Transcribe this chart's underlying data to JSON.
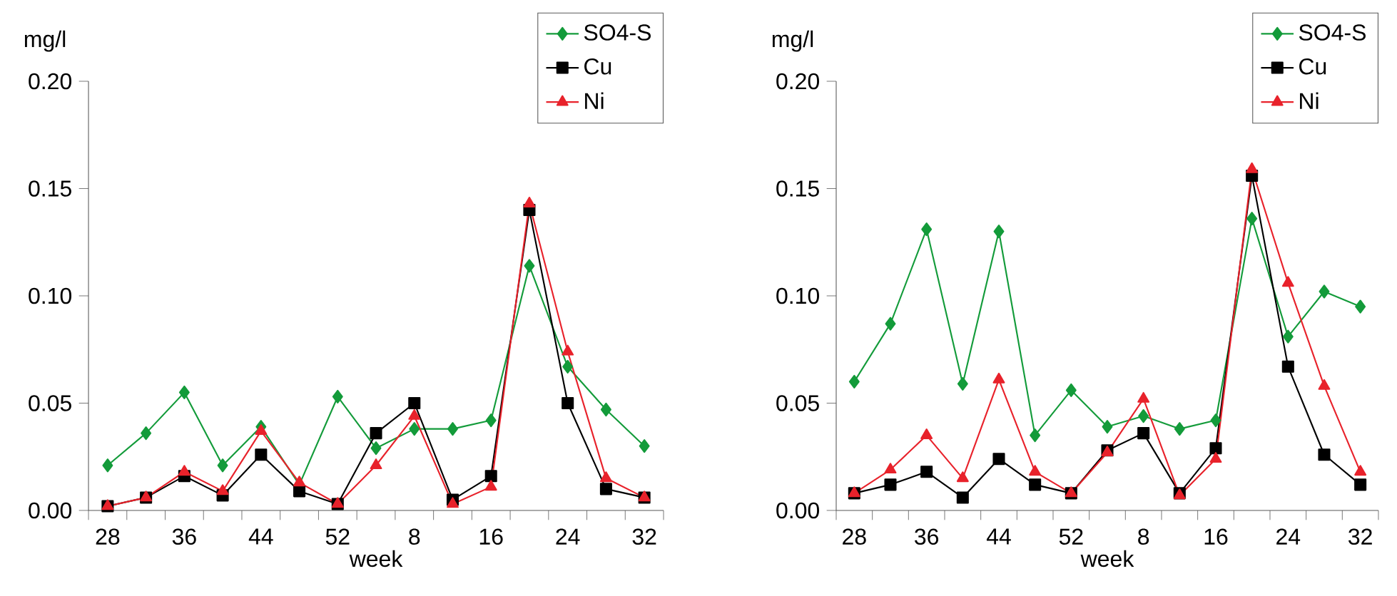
{
  "chart_data": [
    {
      "type": "line",
      "ylabel": "mg/l",
      "xlabel": "week",
      "legend": "top right",
      "grid": false,
      "categories": [
        "28",
        null,
        "36",
        null,
        "44",
        null,
        "52",
        null,
        "8",
        null,
        "16",
        null,
        "24",
        null,
        "32"
      ],
      "ylim": [
        0,
        0.2
      ],
      "yticks": [
        {
          "value": 0,
          "label": "0.00"
        },
        {
          "value": 0.05,
          "label": "0.05"
        },
        {
          "value": 0.1,
          "label": "0.10"
        },
        {
          "value": 0.15,
          "label": "0.15"
        },
        {
          "value": 0.2,
          "label": "0.20"
        }
      ],
      "series": [
        {
          "name": "SO4-S",
          "color": "#139b3a",
          "marker": "diamond",
          "values": [
            0.021,
            0.036,
            0.055,
            0.021,
            0.039,
            0.012,
            0.053,
            0.029,
            0.038,
            0.038,
            0.042,
            0.114,
            0.067,
            0.047,
            0.03
          ]
        },
        {
          "name": "Cu",
          "color": "#000000",
          "marker": "square",
          "values": [
            0.002,
            0.006,
            0.016,
            0.007,
            0.026,
            0.009,
            0.003,
            0.036,
            0.05,
            0.005,
            0.016,
            0.14,
            0.05,
            0.01,
            0.006
          ]
        },
        {
          "name": "Ni",
          "color": "#e8222b",
          "marker": "triangle",
          "values": [
            0.002,
            0.006,
            0.018,
            0.009,
            0.037,
            0.013,
            0.003,
            0.021,
            0.044,
            0.003,
            0.011,
            0.143,
            0.074,
            0.015,
            0.006
          ]
        }
      ]
    },
    {
      "type": "line",
      "ylabel": "mg/l",
      "xlabel": "week",
      "legend": "top right",
      "grid": false,
      "categories": [
        "28",
        null,
        "36",
        null,
        "44",
        null,
        "52",
        null,
        "8",
        null,
        "16",
        null,
        "24",
        null,
        "32"
      ],
      "ylim": [
        0,
        0.2
      ],
      "yticks": [
        {
          "value": 0,
          "label": "0.00"
        },
        {
          "value": 0.05,
          "label": "0.05"
        },
        {
          "value": 0.1,
          "label": "0.10"
        },
        {
          "value": 0.15,
          "label": "0.15"
        },
        {
          "value": 0.2,
          "label": "0.20"
        }
      ],
      "series": [
        {
          "name": "SO4-S",
          "color": "#139b3a",
          "marker": "diamond",
          "values": [
            0.06,
            0.087,
            0.131,
            0.059,
            0.13,
            0.035,
            0.056,
            0.039,
            0.044,
            0.038,
            0.042,
            0.136,
            0.081,
            0.102,
            0.095
          ]
        },
        {
          "name": "Cu",
          "color": "#000000",
          "marker": "square",
          "values": [
            0.008,
            0.012,
            0.018,
            0.006,
            0.024,
            0.012,
            0.008,
            0.028,
            0.036,
            0.008,
            0.029,
            0.156,
            0.067,
            0.026,
            0.012
          ]
        },
        {
          "name": "Ni",
          "color": "#e8222b",
          "marker": "triangle",
          "values": [
            0.008,
            0.019,
            0.035,
            0.015,
            0.061,
            0.018,
            0.008,
            0.027,
            0.052,
            0.007,
            0.024,
            0.159,
            0.106,
            0.058,
            0.018
          ]
        }
      ]
    }
  ]
}
